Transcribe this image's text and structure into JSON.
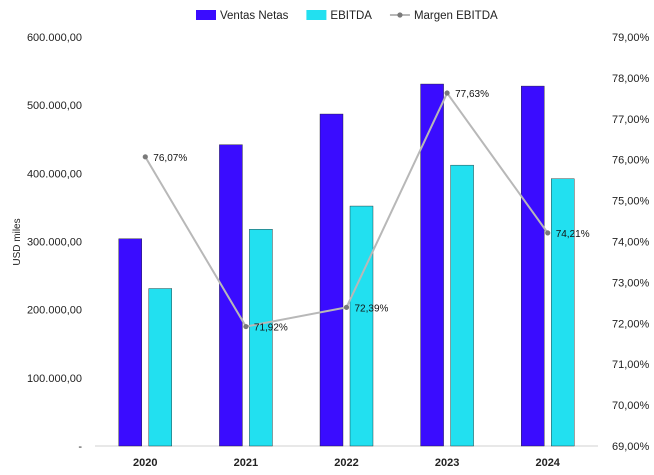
{
  "chart_data": {
    "type": "bar",
    "categories": [
      "2020",
      "2021",
      "2022",
      "2023",
      "2024"
    ],
    "series": [
      {
        "name": "Ventas Netas",
        "type": "bar",
        "axis": "left",
        "color": "#3a0cff",
        "values": [
          304000,
          442000,
          487000,
          531000,
          528000
        ]
      },
      {
        "name": "EBITDA",
        "type": "bar",
        "axis": "left",
        "color": "#22e0f0",
        "values": [
          231000,
          318000,
          352000,
          412000,
          392000
        ]
      },
      {
        "name": "Margen EBITDA",
        "type": "line",
        "axis": "right",
        "color": "#b8b8b8",
        "marker_color": "#7a7a7a",
        "values": [
          76.07,
          71.92,
          72.39,
          77.63,
          74.21
        ],
        "labels": [
          "76,07%",
          "71,92%",
          "72,39%",
          "77,63%",
          "74,21%"
        ]
      }
    ],
    "ylabel": "USD miles",
    "ylim": [
      0,
      600000
    ],
    "y2lim": [
      69,
      79
    ],
    "y_ticks": [
      "-",
      "100.000,00",
      "200.000,00",
      "300.000,00",
      "400.000,00",
      "500.000,00",
      "600.000,00"
    ],
    "y2_ticks": [
      "69,00%",
      "70,00%",
      "71,00%",
      "72,00%",
      "73,00%",
      "74,00%",
      "75,00%",
      "76,00%",
      "77,00%",
      "78,00%",
      "79,00%"
    ],
    "legend_position": "top-center",
    "grid": false
  }
}
